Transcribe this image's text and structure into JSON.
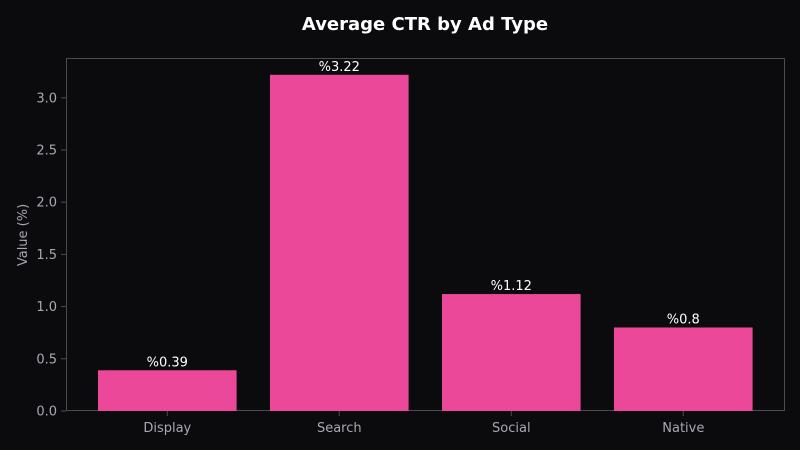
{
  "chart_data": {
    "type": "bar",
    "title": "Average CTR by Ad Type",
    "xlabel": "",
    "ylabel": "Value (%)",
    "categories": [
      "Display",
      "Search",
      "Social",
      "Native"
    ],
    "values": [
      0.39,
      3.22,
      1.12,
      0.8
    ],
    "value_labels": [
      "%0.39",
      "%3.22",
      "%1.12",
      "%0.8"
    ],
    "ylim": [
      0,
      3.381
    ],
    "yticks": [
      0.0,
      0.5,
      1.0,
      1.5,
      2.0,
      2.5,
      3.0
    ],
    "ytick_labels": [
      "0.0",
      "0.5",
      "1.0",
      "1.5",
      "2.0",
      "2.5",
      "3.0"
    ],
    "grid": false,
    "legend": "none",
    "colors": {
      "bar": "#ec4899",
      "background": "#0b0b0e",
      "axis": "#4b4b55",
      "text": "#a8a8b3",
      "title": "#ffffff"
    }
  }
}
